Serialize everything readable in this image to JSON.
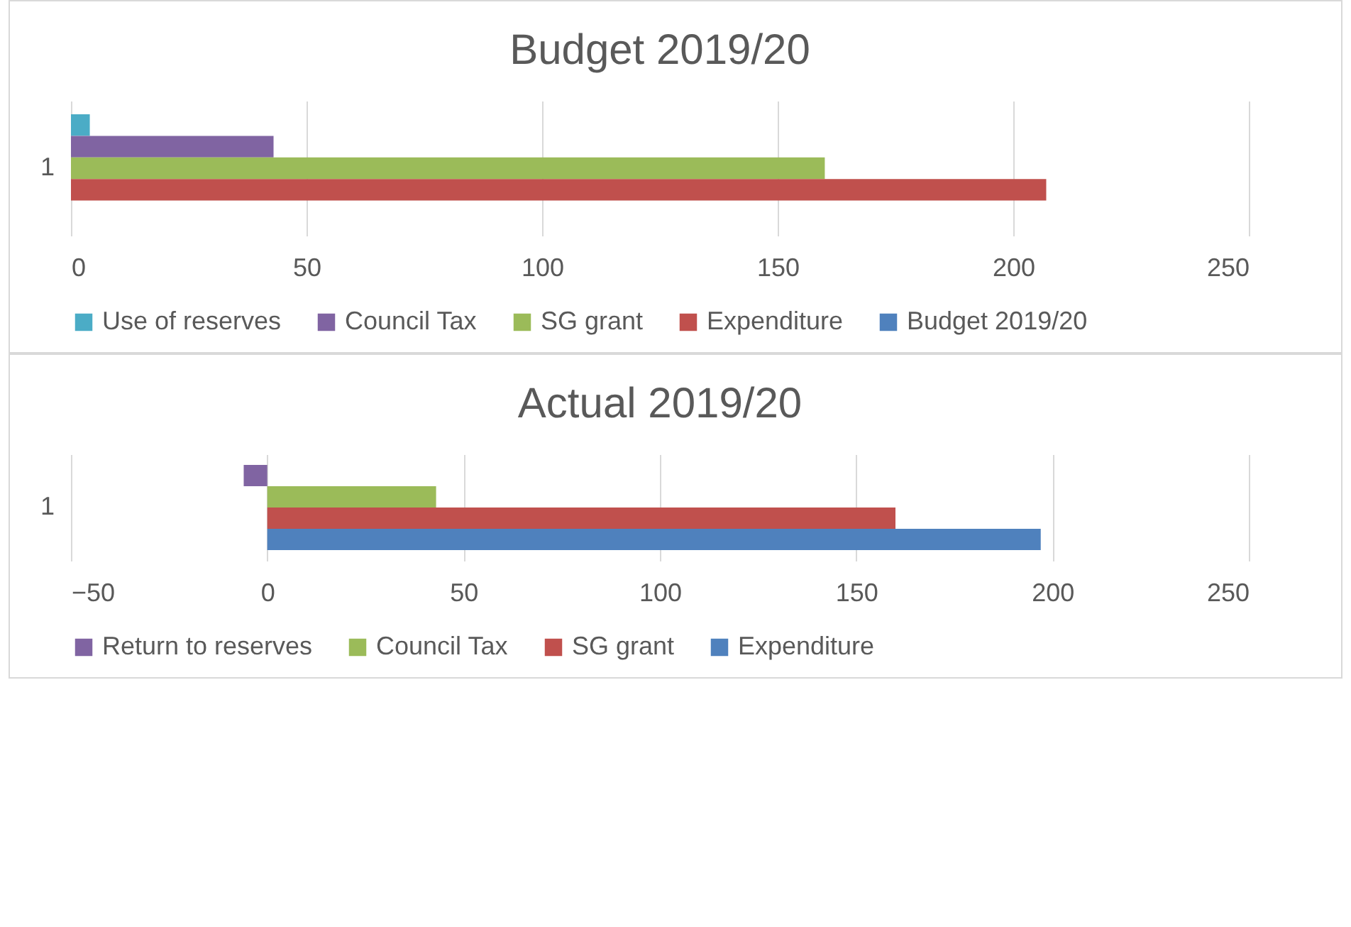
{
  "chart_data": [
    {
      "type": "bar",
      "orientation": "horizontal",
      "title": "Budget 2019/20",
      "categories": [
        "1"
      ],
      "xlim": [
        0,
        250
      ],
      "xticks": [
        0,
        50,
        100,
        150,
        200,
        250
      ],
      "grid": "x",
      "legend": "bottom",
      "series": [
        {
          "name": "Use of reserves",
          "color": "#4bacc6",
          "values": [
            4
          ]
        },
        {
          "name": "Council Tax",
          "color": "#8064a2",
          "values": [
            43
          ]
        },
        {
          "name": "SG grant",
          "color": "#9bbb59",
          "values": [
            160
          ]
        },
        {
          "name": "Expenditure",
          "color": "#c0504d",
          "values": [
            207
          ]
        },
        {
          "name": "Budget 2019/20",
          "color": "#4f81bd",
          "values": [
            null
          ]
        }
      ]
    },
    {
      "type": "bar",
      "orientation": "horizontal",
      "title": "Actual 2019/20",
      "categories": [
        "1"
      ],
      "xlim": [
        -50,
        250
      ],
      "xticks": [
        -50,
        0,
        50,
        100,
        150,
        200,
        250
      ],
      "grid": "x",
      "legend": "bottom",
      "series": [
        {
          "name": "Return to reserves",
          "color": "#8064a2",
          "values": [
            -6
          ]
        },
        {
          "name": "Council Tax",
          "color": "#9bbb59",
          "values": [
            43
          ]
        },
        {
          "name": "SG grant",
          "color": "#c0504d",
          "values": [
            160
          ]
        },
        {
          "name": "Expenditure",
          "color": "#4f81bd",
          "values": [
            197
          ]
        }
      ]
    }
  ]
}
